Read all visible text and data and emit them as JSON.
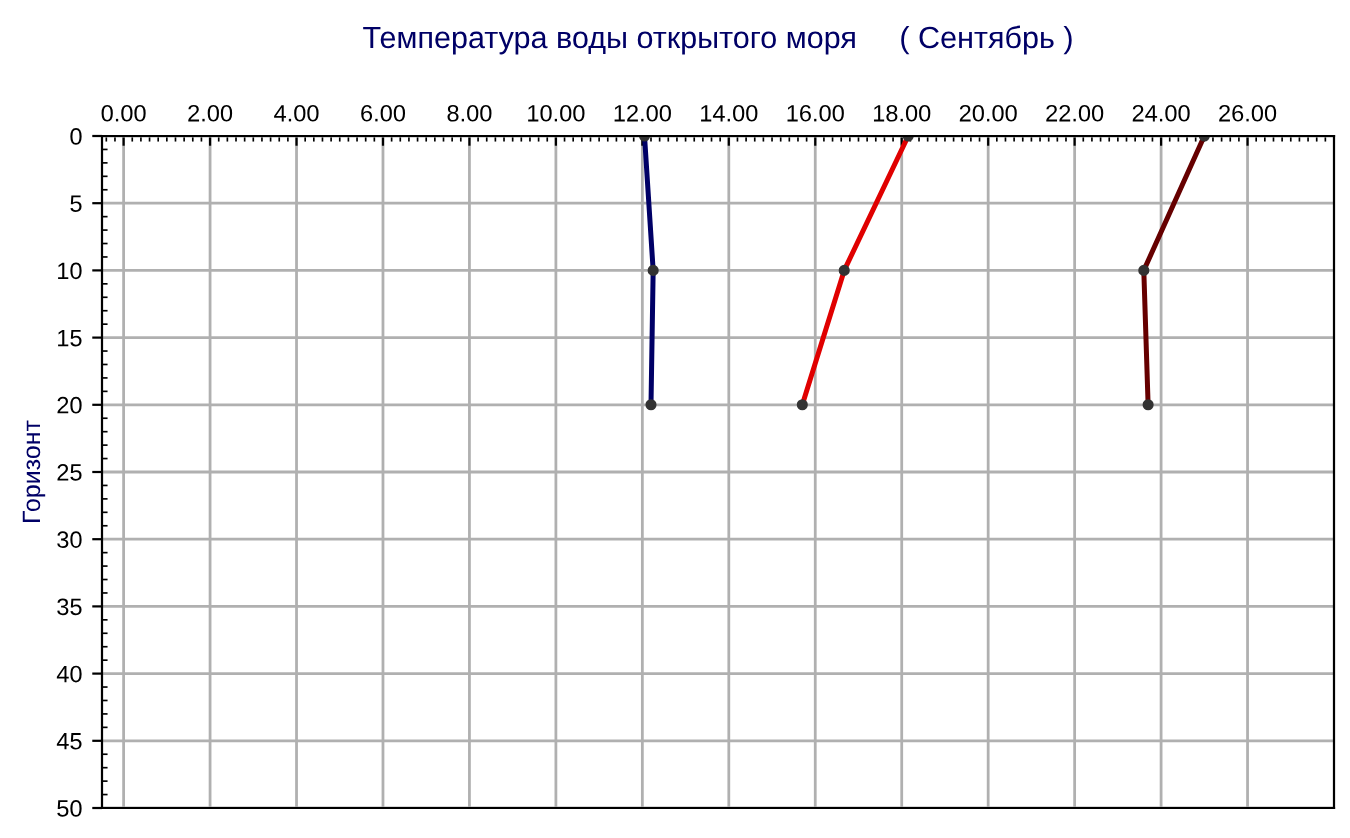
{
  "chart_data": {
    "type": "line",
    "title": "Температура воды открытого моря     ( Сентябрь )",
    "ylabel": "Горизонт",
    "series": [
      {
        "color": "#000066",
        "x": [
          12.05,
          12.25,
          12.2
        ],
        "values": [
          0,
          10,
          20
        ]
      },
      {
        "color": "#e00000",
        "x": [
          18.15,
          16.67,
          15.7
        ],
        "values": [
          0,
          10,
          20
        ]
      },
      {
        "color": "#660000",
        "x": [
          25.0,
          23.6,
          23.7
        ],
        "values": [
          0,
          10,
          20
        ]
      }
    ],
    "xlim": [
      -0.5,
      28
    ],
    "ylim": [
      50,
      0
    ],
    "xticks": [
      {
        "value": 0,
        "label": "0.00"
      },
      {
        "value": 2,
        "label": "2.00"
      },
      {
        "value": 4,
        "label": "4.00"
      },
      {
        "value": 6,
        "label": "6.00"
      },
      {
        "value": 8,
        "label": "8.00"
      },
      {
        "value": 10,
        "label": "10.00"
      },
      {
        "value": 12,
        "label": "12.00"
      },
      {
        "value": 14,
        "label": "14.00"
      },
      {
        "value": 16,
        "label": "16.00"
      },
      {
        "value": 18,
        "label": "18.00"
      },
      {
        "value": 20,
        "label": "20.00"
      },
      {
        "value": 22,
        "label": "22.00"
      },
      {
        "value": 24,
        "label": "24.00"
      },
      {
        "value": 26,
        "label": "26.00"
      }
    ],
    "yticks": [
      0,
      5,
      10,
      15,
      20,
      25,
      30,
      35,
      40,
      45,
      50
    ],
    "grid": true,
    "marker": "circle",
    "line_style": "solid"
  }
}
